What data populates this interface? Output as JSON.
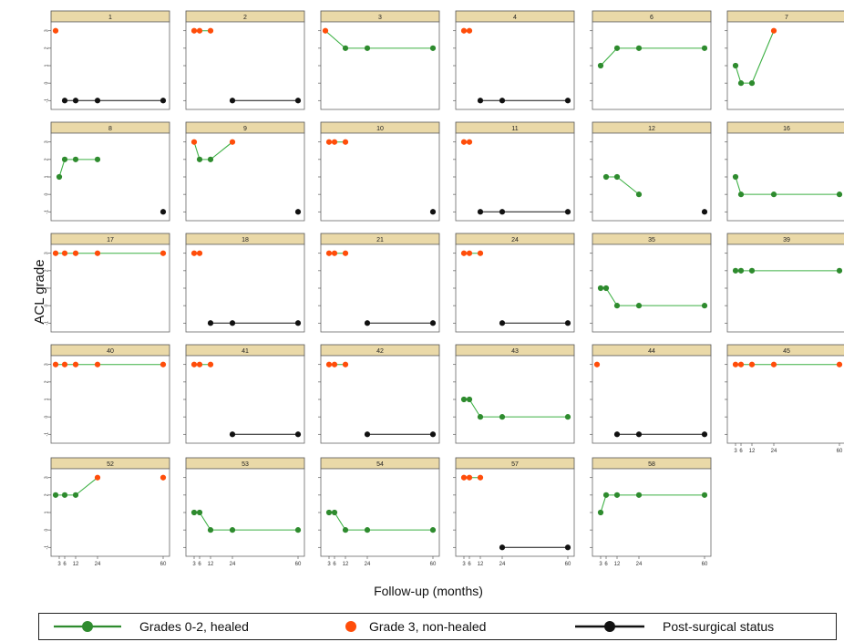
{
  "chart_data": {
    "type": "line",
    "ylabel": "ACL grade",
    "xlabel": "Follow-up (months)",
    "x_ticks": [
      3,
      6,
      12,
      24,
      60
    ],
    "x_tick_labels": [
      "3",
      "6",
      "12",
      "24",
      "60"
    ],
    "y_ticks": [
      -1,
      0,
      1,
      2,
      3
    ],
    "y_tick_labels": [
      "-1",
      "0",
      "1",
      "2",
      "3"
    ],
    "xlim": [
      0,
      62
    ],
    "ylim": [
      -1.3,
      3.3
    ],
    "colors": {
      "healed": "#2e8b2e",
      "healed_line": "#3cb043",
      "non_healed": "#ff4d0a",
      "post_surgical": "#111111",
      "strip": "#ead9a8"
    },
    "legend": {
      "healed_label": "Grades 0-2, healed",
      "non_healed_label": "Grade 3, non-healed",
      "post_surgical_label": "Post-surgical status"
    },
    "panels": [
      {
        "id": "1",
        "healed": [],
        "non_healed": [
          [
            1,
            3
          ]
        ],
        "post_surgical": [
          [
            6,
            -1
          ],
          [
            12,
            -1
          ],
          [
            24,
            -1
          ],
          [
            60,
            -1
          ]
        ]
      },
      {
        "id": "2",
        "healed": [],
        "non_healed": [
          [
            3,
            3
          ],
          [
            6,
            3
          ],
          [
            12,
            3
          ]
        ],
        "post_surgical": [
          [
            24,
            -1
          ],
          [
            60,
            -1
          ]
        ]
      },
      {
        "id": "3",
        "healed": [
          [
            12,
            2
          ],
          [
            24,
            2
          ],
          [
            60,
            2
          ]
        ],
        "non_healed": [
          [
            1,
            3
          ]
        ],
        "post_surgical": []
      },
      {
        "id": "4",
        "healed": [],
        "non_healed": [
          [
            3,
            3
          ],
          [
            6,
            3
          ]
        ],
        "post_surgical": [
          [
            12,
            -1
          ],
          [
            24,
            -1
          ],
          [
            60,
            -1
          ]
        ]
      },
      {
        "id": "6",
        "healed": [
          [
            3,
            1
          ],
          [
            12,
            2
          ],
          [
            24,
            2
          ],
          [
            60,
            2
          ]
        ],
        "non_healed": [],
        "post_surgical": []
      },
      {
        "id": "7",
        "healed": [
          [
            3,
            1
          ],
          [
            6,
            0
          ],
          [
            12,
            0
          ]
        ],
        "non_healed": [
          [
            24,
            3
          ]
        ],
        "post_surgical": []
      },
      {
        "id": "8",
        "healed": [
          [
            3,
            1
          ],
          [
            6,
            2
          ],
          [
            12,
            2
          ],
          [
            24,
            2
          ]
        ],
        "non_healed": [],
        "post_surgical": [
          [
            60,
            -1
          ]
        ]
      },
      {
        "id": "9",
        "healed": [
          [
            6,
            2
          ],
          [
            12,
            2
          ]
        ],
        "non_healed": [
          [
            3,
            3
          ],
          [
            24,
            3
          ]
        ],
        "post_surgical": [
          [
            60,
            -1
          ]
        ]
      },
      {
        "id": "10",
        "healed": [],
        "non_healed": [
          [
            3,
            3
          ],
          [
            6,
            3
          ],
          [
            12,
            3
          ]
        ],
        "post_surgical": [
          [
            60,
            -1
          ]
        ]
      },
      {
        "id": "11",
        "healed": [],
        "non_healed": [
          [
            3,
            3
          ],
          [
            6,
            3
          ]
        ],
        "post_surgical": [
          [
            12,
            -1
          ],
          [
            24,
            -1
          ],
          [
            60,
            -1
          ]
        ]
      },
      {
        "id": "12",
        "healed": [
          [
            6,
            1
          ],
          [
            12,
            1
          ],
          [
            24,
            0
          ]
        ],
        "non_healed": [],
        "post_surgical": [
          [
            60,
            -1
          ]
        ]
      },
      {
        "id": "16",
        "healed": [
          [
            3,
            1
          ],
          [
            6,
            0
          ],
          [
            24,
            0
          ],
          [
            60,
            0
          ]
        ],
        "non_healed": [],
        "post_surgical": []
      },
      {
        "id": "17",
        "healed": [],
        "non_healed": [
          [
            1,
            3
          ],
          [
            6,
            3
          ],
          [
            12,
            3
          ],
          [
            24,
            3
          ],
          [
            60,
            3
          ]
        ],
        "post_surgical": []
      },
      {
        "id": "18",
        "healed": [],
        "non_healed": [
          [
            3,
            3
          ],
          [
            6,
            3
          ]
        ],
        "post_surgical": [
          [
            12,
            -1
          ],
          [
            24,
            -1
          ],
          [
            60,
            -1
          ]
        ]
      },
      {
        "id": "21",
        "healed": [],
        "non_healed": [
          [
            3,
            3
          ],
          [
            6,
            3
          ],
          [
            12,
            3
          ]
        ],
        "post_surgical": [
          [
            24,
            -1
          ],
          [
            60,
            -1
          ]
        ]
      },
      {
        "id": "24",
        "healed": [],
        "non_healed": [
          [
            3,
            3
          ],
          [
            6,
            3
          ],
          [
            12,
            3
          ]
        ],
        "post_surgical": [
          [
            24,
            -1
          ],
          [
            60,
            -1
          ]
        ]
      },
      {
        "id": "35",
        "healed": [
          [
            3,
            1
          ],
          [
            6,
            1
          ],
          [
            12,
            0
          ],
          [
            24,
            0
          ],
          [
            60,
            0
          ]
        ],
        "non_healed": [],
        "post_surgical": []
      },
      {
        "id": "39",
        "healed": [
          [
            3,
            2
          ],
          [
            6,
            2
          ],
          [
            12,
            2
          ],
          [
            60,
            2
          ]
        ],
        "non_healed": [],
        "post_surgical": []
      },
      {
        "id": "40",
        "healed": [],
        "non_healed": [
          [
            1,
            3
          ],
          [
            6,
            3
          ],
          [
            12,
            3
          ],
          [
            24,
            3
          ],
          [
            60,
            3
          ]
        ],
        "post_surgical": []
      },
      {
        "id": "41",
        "healed": [],
        "non_healed": [
          [
            3,
            3
          ],
          [
            6,
            3
          ],
          [
            12,
            3
          ]
        ],
        "post_surgical": [
          [
            24,
            -1
          ],
          [
            60,
            -1
          ]
        ]
      },
      {
        "id": "42",
        "healed": [],
        "non_healed": [
          [
            3,
            3
          ],
          [
            6,
            3
          ],
          [
            12,
            3
          ]
        ],
        "post_surgical": [
          [
            24,
            -1
          ],
          [
            60,
            -1
          ]
        ]
      },
      {
        "id": "43",
        "healed": [
          [
            3,
            1
          ],
          [
            6,
            1
          ],
          [
            12,
            0
          ],
          [
            24,
            0
          ],
          [
            60,
            0
          ]
        ],
        "non_healed": [],
        "post_surgical": []
      },
      {
        "id": "44",
        "healed": [],
        "non_healed": [
          [
            1,
            3
          ]
        ],
        "post_surgical": [
          [
            12,
            -1
          ],
          [
            24,
            -1
          ],
          [
            60,
            -1
          ]
        ]
      },
      {
        "id": "45",
        "healed": [],
        "non_healed": [
          [
            3,
            3
          ],
          [
            6,
            3
          ],
          [
            12,
            3
          ],
          [
            24,
            3
          ],
          [
            60,
            3
          ]
        ],
        "post_surgical": []
      },
      {
        "id": "52",
        "healed": [
          [
            1,
            2
          ],
          [
            6,
            2
          ],
          [
            12,
            2
          ]
        ],
        "non_healed": [
          [
            24,
            3
          ],
          [
            60,
            3
          ]
        ],
        "post_surgical": []
      },
      {
        "id": "53",
        "healed": [
          [
            3,
            1
          ],
          [
            6,
            1
          ],
          [
            12,
            0
          ],
          [
            24,
            0
          ],
          [
            60,
            0
          ]
        ],
        "non_healed": [],
        "post_surgical": []
      },
      {
        "id": "54",
        "healed": [
          [
            3,
            1
          ],
          [
            6,
            1
          ],
          [
            12,
            0
          ],
          [
            24,
            0
          ],
          [
            60,
            0
          ]
        ],
        "non_healed": [],
        "post_surgical": []
      },
      {
        "id": "57",
        "healed": [],
        "non_healed": [
          [
            3,
            3
          ],
          [
            6,
            3
          ],
          [
            12,
            3
          ]
        ],
        "post_surgical": [
          [
            24,
            -1
          ],
          [
            60,
            -1
          ]
        ]
      },
      {
        "id": "58",
        "healed": [
          [
            3,
            1
          ],
          [
            6,
            2
          ],
          [
            12,
            2
          ],
          [
            24,
            2
          ],
          [
            60,
            2
          ]
        ],
        "non_healed": [],
        "post_surgical": []
      }
    ],
    "x_axis_panels": [
      "45",
      "52",
      "53",
      "54",
      "57",
      "58"
    ]
  }
}
